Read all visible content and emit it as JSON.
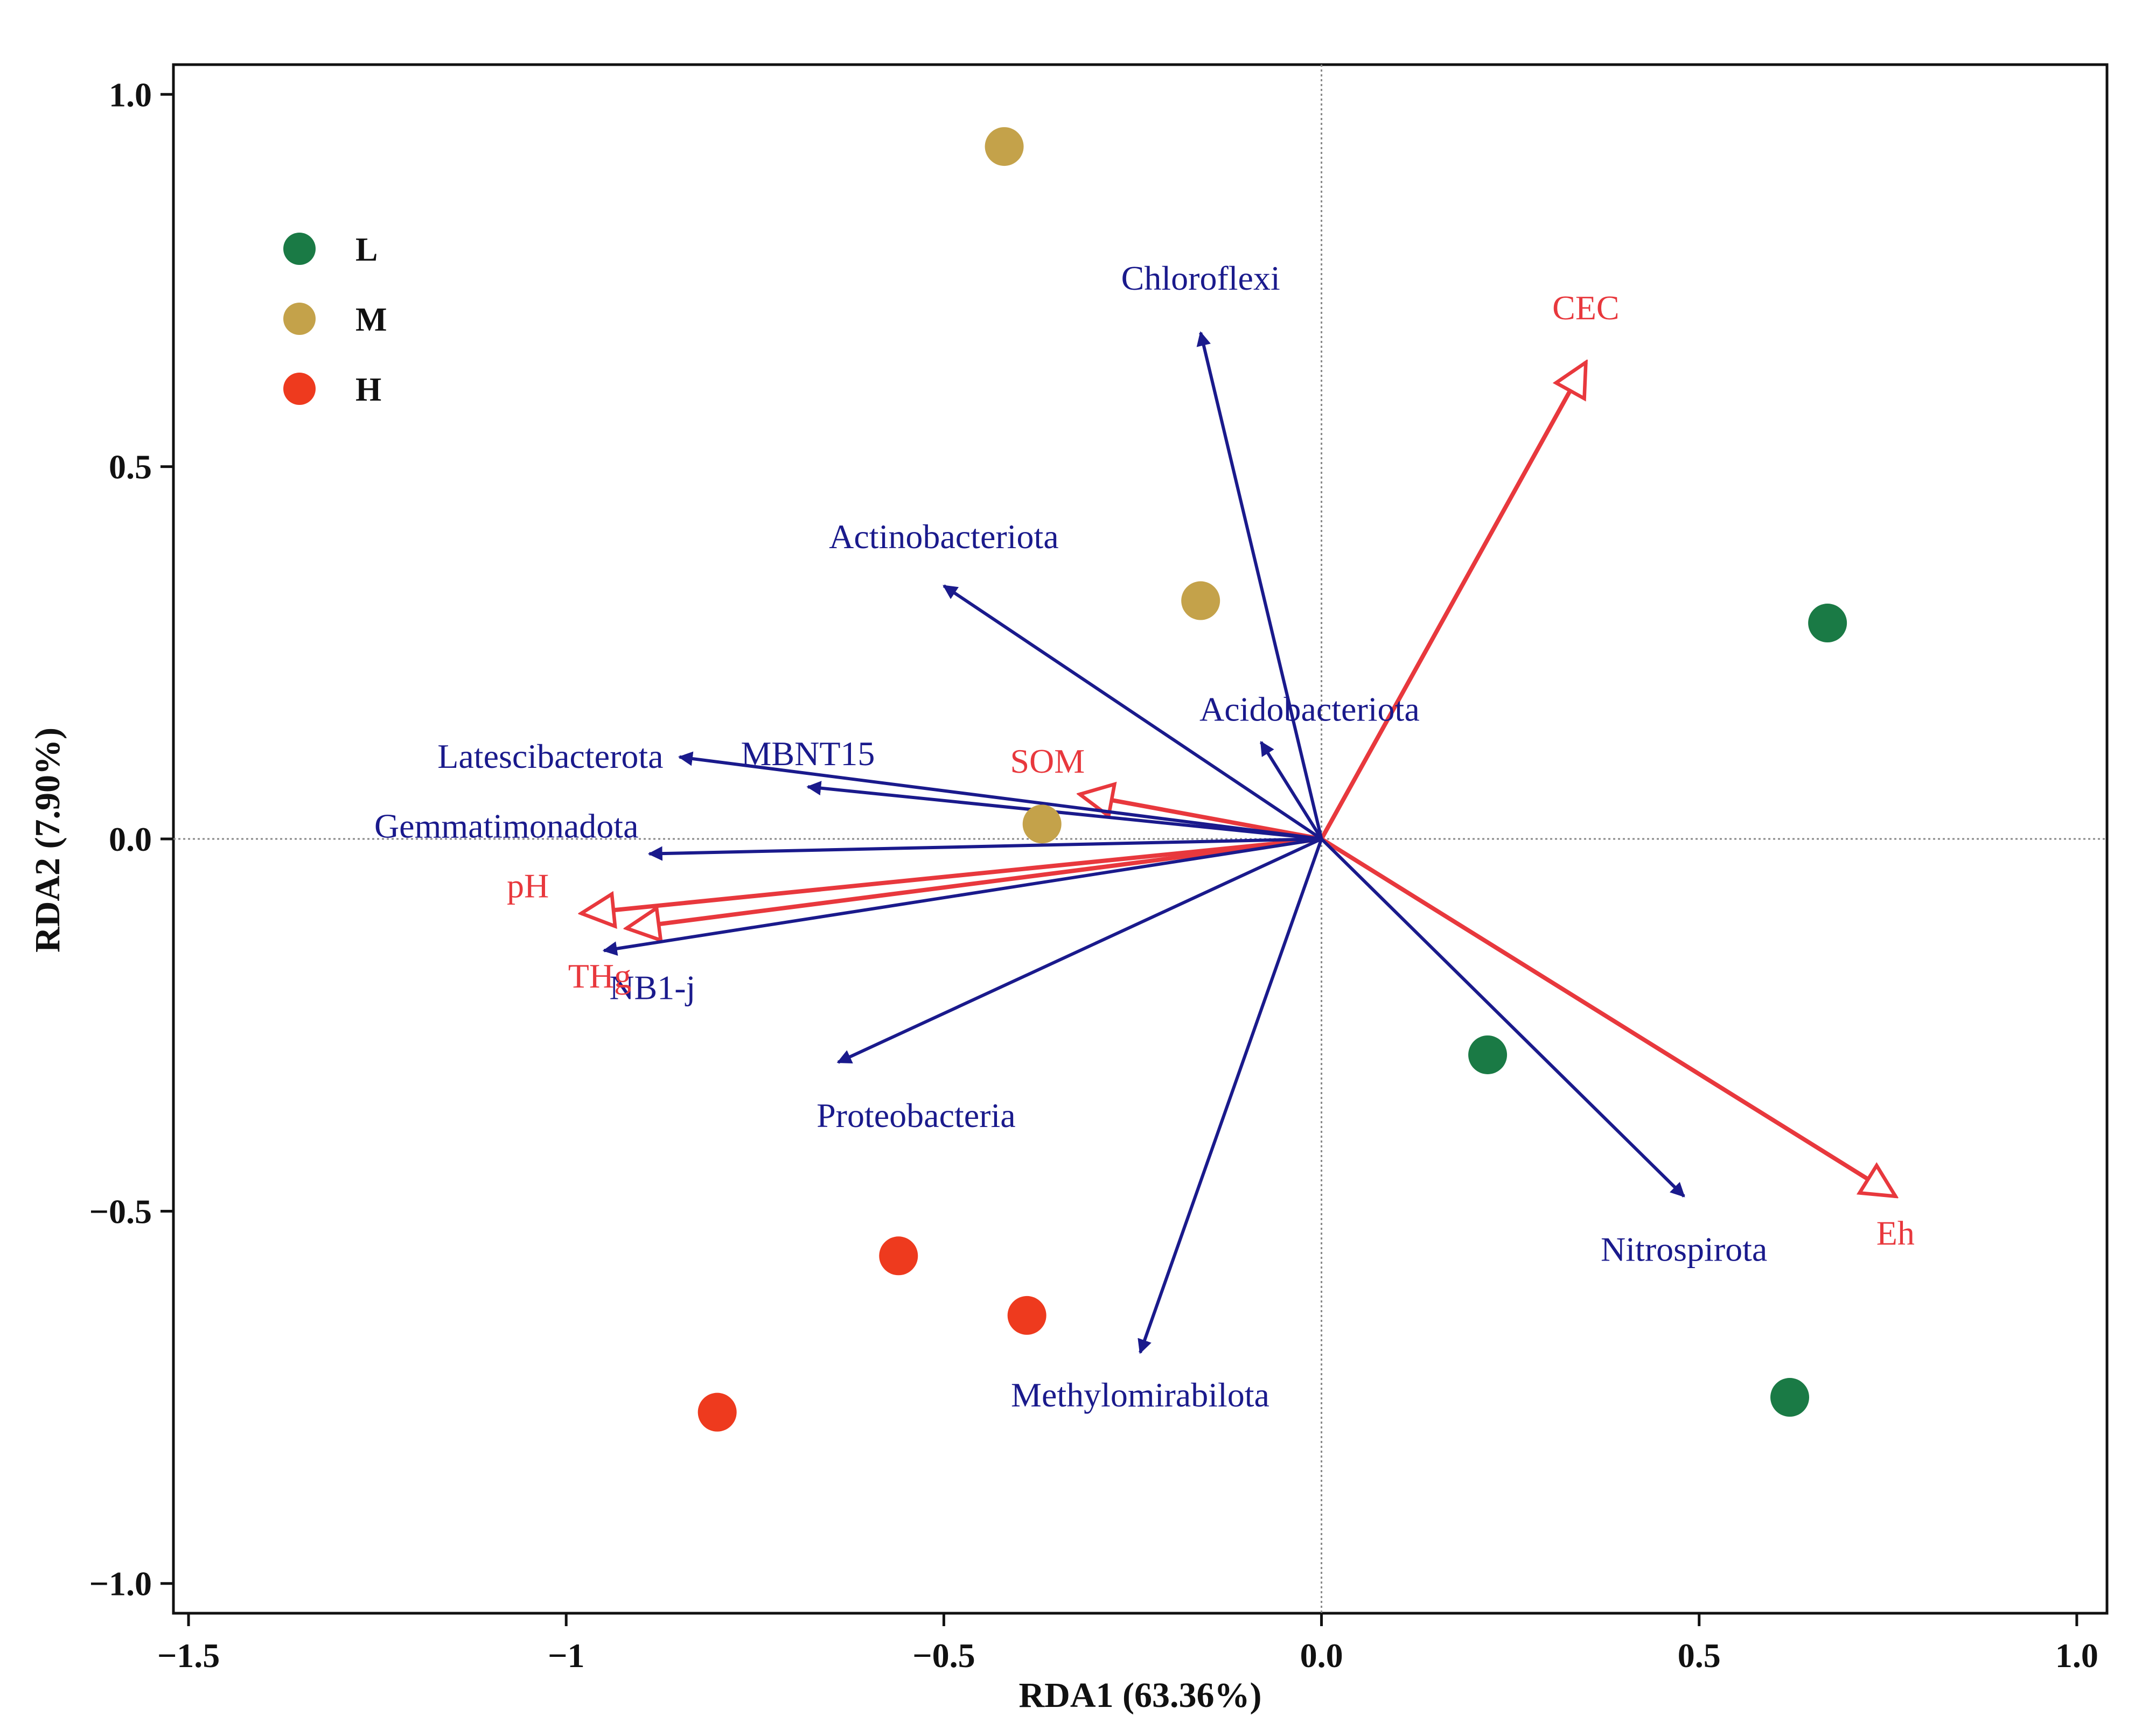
{
  "colors": {
    "taxa": "#1a1a8c",
    "env": "#e8383d",
    "L": "#1a7a45",
    "M": "#c4a24a",
    "H": "#ee3a1e",
    "axis": "#111111",
    "zero_line": "#888888"
  },
  "chart_data": {
    "type": "scatter",
    "subtype": "RDA biplot",
    "xlabel": "RDA1 (63.36%)",
    "ylabel": "RDA2 (7.90%)",
    "xlim": [
      -1.52,
      1.04
    ],
    "ylim": [
      -1.04,
      1.04
    ],
    "xticks": [
      -1.5,
      -1,
      -0.5,
      0.0,
      0.5,
      1.0
    ],
    "xtick_labels": [
      "−1.5",
      "−1",
      "−0.5",
      "0.0",
      "0.5",
      "1.0"
    ],
    "yticks": [
      1.0,
      0.5,
      0.0,
      -0.5,
      -1.0
    ],
    "ytick_labels": [
      "1.0",
      "0.5",
      "0.0",
      "−0.5",
      "−1.0"
    ],
    "zero_lines": true,
    "legend_position": "top-left",
    "legend": [
      {
        "name": "L",
        "color": "#1a7a45"
      },
      {
        "name": "M",
        "color": "#c4a24a"
      },
      {
        "name": "H",
        "color": "#ee3a1e"
      }
    ],
    "samples": [
      {
        "group": "L",
        "x": 0.67,
        "y": 0.29
      },
      {
        "group": "L",
        "x": 0.22,
        "y": -0.29
      },
      {
        "group": "L",
        "x": 0.62,
        "y": -0.75
      },
      {
        "group": "M",
        "x": -0.42,
        "y": 0.93
      },
      {
        "group": "M",
        "x": -0.16,
        "y": 0.32
      },
      {
        "group": "M",
        "x": -0.37,
        "y": 0.02
      },
      {
        "group": "H",
        "x": -0.56,
        "y": -0.56
      },
      {
        "group": "H",
        "x": -0.39,
        "y": -0.64
      },
      {
        "group": "H",
        "x": -0.8,
        "y": -0.77
      }
    ],
    "taxa_vectors": [
      {
        "name": "Chloroflexi",
        "x": -0.16,
        "y": 0.68
      },
      {
        "name": "Actinobacteriota",
        "x": -0.5,
        "y": 0.34
      },
      {
        "name": "Acidobacteriota",
        "x": -0.08,
        "y": 0.13
      },
      {
        "name": "Latescibacterota",
        "x": -0.85,
        "y": 0.11
      },
      {
        "name": "MBNT15",
        "x": -0.68,
        "y": 0.07
      },
      {
        "name": "Gemmatimonadota",
        "x": -0.89,
        "y": -0.02
      },
      {
        "name": "NB1-j",
        "x": -0.95,
        "y": -0.15
      },
      {
        "name": "Proteobacteria",
        "x": -0.64,
        "y": -0.3
      },
      {
        "name": "Methylomirabilota",
        "x": -0.24,
        "y": -0.69
      },
      {
        "name": "Nitrospirota",
        "x": 0.48,
        "y": -0.48
      }
    ],
    "env_vectors": [
      {
        "name": "CEC",
        "x": 0.35,
        "y": 0.64
      },
      {
        "name": "SOM",
        "x": -0.32,
        "y": 0.06
      },
      {
        "name": "pH",
        "x": -0.98,
        "y": -0.1
      },
      {
        "name": "THg",
        "x": -0.92,
        "y": -0.12
      },
      {
        "name": "Eh",
        "x": 0.76,
        "y": -0.48
      }
    ]
  }
}
